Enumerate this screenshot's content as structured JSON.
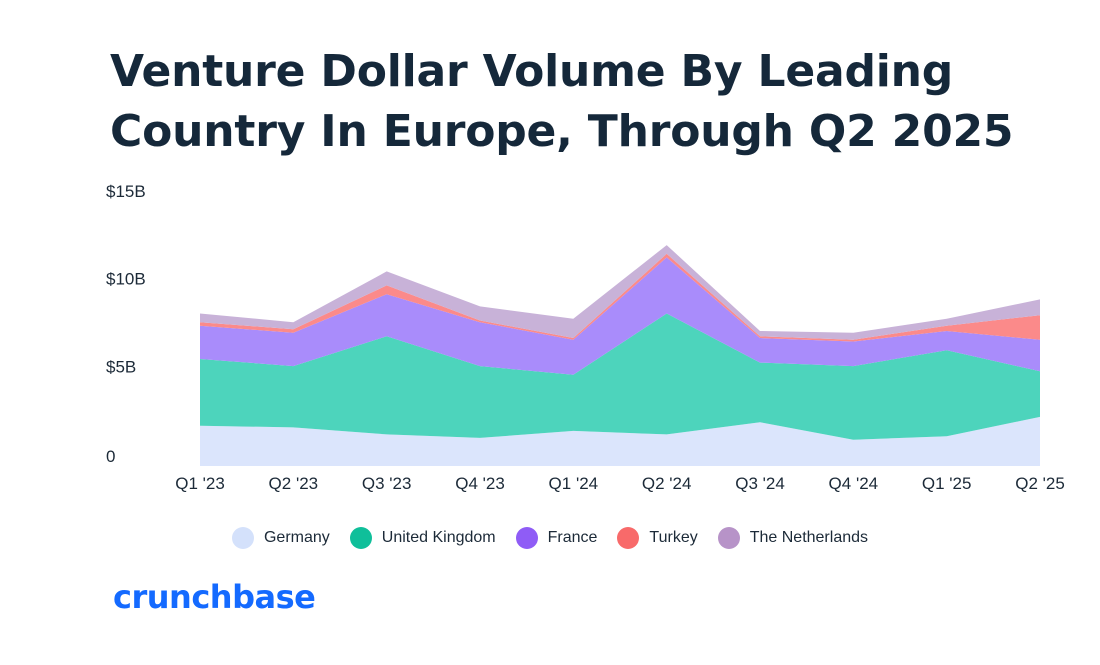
{
  "colors": {
    "Germany": "#dbe5fc",
    "United Kingdom": "#4dd4bc",
    "France": "#a98cfb",
    "Turkey": "#fb8a8a",
    "The Netherlands": "#c8b2d8",
    "legend_Germany": "#d4e1fb",
    "legend_United Kingdom": "#0fbf9a",
    "legend_France": "#8f5cf6",
    "legend_Turkey": "#f86a6a",
    "legend_The Netherlands": "#b793c8",
    "text": "#15283a",
    "brand": "#146aff"
  },
  "chart_data": {
    "type": "area",
    "stacked": true,
    "title": "Venture Dollar Volume By Leading Country In Europe, Through Q2 2025",
    "title_lines": [
      "Venture Dollar Volume By Leading",
      "Country In Europe, Through Q2 2025"
    ],
    "categories": [
      "Q1 '23",
      "Q2 '23",
      "Q3 '23",
      "Q4 '23",
      "Q1 '24",
      "Q2 '24",
      "Q3 '24",
      "Q4 '24",
      "Q1 '25",
      "Q2 '25"
    ],
    "y_ticks": [
      {
        "value": 0,
        "label": "0"
      },
      {
        "value": 5,
        "label": "$5B"
      },
      {
        "value": 10,
        "label": "$10B"
      },
      {
        "value": 15,
        "label": "$15B"
      }
    ],
    "ylim": [
      0,
      15
    ],
    "unit": "$B",
    "grid": false,
    "legend_position": "bottom",
    "series": [
      {
        "name": "Germany",
        "values": [
          2.3,
          2.2,
          1.8,
          1.6,
          2.0,
          1.8,
          2.5,
          1.5,
          1.7,
          2.8
        ]
      },
      {
        "name": "United Kingdom",
        "values": [
          3.8,
          3.5,
          5.6,
          4.1,
          3.2,
          6.9,
          3.4,
          4.2,
          4.9,
          2.6
        ]
      },
      {
        "name": "France",
        "values": [
          1.9,
          1.9,
          2.4,
          2.5,
          2.0,
          3.2,
          1.4,
          1.4,
          1.1,
          1.8
        ]
      },
      {
        "name": "Turkey",
        "values": [
          0.2,
          0.2,
          0.5,
          0.1,
          0.1,
          0.2,
          0.1,
          0.1,
          0.3,
          1.4
        ]
      },
      {
        "name": "The Netherlands",
        "values": [
          0.5,
          0.4,
          0.8,
          0.8,
          1.1,
          0.5,
          0.3,
          0.4,
          0.4,
          0.9
        ]
      }
    ]
  },
  "brand": {
    "logo_text": "crunchbase"
  }
}
